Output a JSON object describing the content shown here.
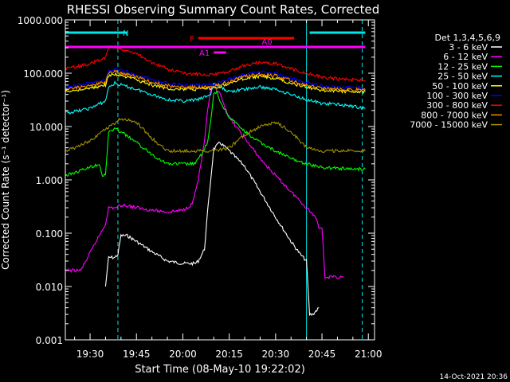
{
  "chart_data": {
    "type": "line",
    "title": "RHESSI Observing Summary Count Rates, Corrected",
    "xlabel": "Start Time (08-May-10 19:22:02)",
    "ylabel": "Corrected Count Rate (s⁻¹ detector⁻¹)",
    "yscale": "log",
    "ylim": [
      0.001,
      1000
    ],
    "xlim": [
      "19:22",
      "21:02"
    ],
    "x_ticks": [
      "19:30",
      "19:45",
      "20:00",
      "20:15",
      "20:30",
      "20:45",
      "21:00"
    ],
    "y_ticks": [
      "0.001",
      "0.010",
      "0.100",
      "1.000",
      "10.000",
      "100.000",
      "1000.000"
    ],
    "grid": false,
    "legend_position": "right",
    "legend_title": "Det 1,3,4,5,6,9",
    "timestamp": "14-Oct-2021 20:36",
    "flags": [
      {
        "label": "N",
        "color": "#00e5e5",
        "segments": [
          [
            "19:22",
            "19:42"
          ],
          [
            "20:41",
            "20:59"
          ]
        ]
      },
      {
        "label": "F",
        "color": "#ff0000",
        "segments": [
          [
            "20:05",
            "20:36"
          ]
        ]
      },
      {
        "label": "A0",
        "color": "#ff00ff",
        "segments": [
          [
            "19:22",
            "20:59"
          ]
        ]
      },
      {
        "label": "A1",
        "color": "#ff00ff",
        "segments": [
          [
            "20:10",
            "20:14"
          ]
        ]
      }
    ],
    "vertical_markers": [
      {
        "time": "19:22",
        "style": "dashed",
        "color": "#00e5e5"
      },
      {
        "time": "19:39",
        "style": "dashed",
        "color": "#00e5e5"
      },
      {
        "time": "20:40",
        "style": "solid",
        "color": "#00e5e5"
      },
      {
        "time": "20:58",
        "style": "dashed",
        "color": "#00e5e5"
      }
    ],
    "series": [
      {
        "name": "3 - 6 keV",
        "color": "#ffffff",
        "x": [
          "19:35",
          "19:36",
          "19:38",
          "19:39",
          "19:40",
          "19:42",
          "19:45",
          "19:50",
          "19:55",
          "20:00",
          "20:04",
          "20:05",
          "20:07",
          "20:08",
          "20:09",
          "20:10",
          "20:12",
          "20:15",
          "20:20",
          "20:25",
          "20:30",
          "20:35",
          "20:38",
          "20:40",
          "20:41",
          "20:42",
          "20:44"
        ],
        "y": [
          0.01,
          0.035,
          0.035,
          0.04,
          0.09,
          0.09,
          0.07,
          0.045,
          0.03,
          0.027,
          0.027,
          0.03,
          0.05,
          0.25,
          1.0,
          3.8,
          5.0,
          3.5,
          1.8,
          0.6,
          0.2,
          0.07,
          0.04,
          0.03,
          0.003,
          0.003,
          0.004
        ]
      },
      {
        "name": "6 - 12 keV",
        "color": "#ff00ff",
        "x": [
          "19:22",
          "19:27",
          "19:35",
          "19:36",
          "19:38",
          "19:40",
          "19:42",
          "19:45",
          "19:50",
          "19:55",
          "20:00",
          "20:03",
          "20:05",
          "20:07",
          "20:08",
          "20:09",
          "20:10",
          "20:12",
          "20:15",
          "20:20",
          "20:25",
          "20:30",
          "20:35",
          "20:40",
          "20:43",
          "20:44",
          "20:45",
          "20:46",
          "20:52"
        ],
        "y": [
          0.02,
          0.02,
          0.15,
          0.3,
          0.3,
          0.33,
          0.33,
          0.3,
          0.27,
          0.25,
          0.27,
          0.35,
          1.0,
          5.0,
          20,
          50,
          55,
          40,
          15,
          6,
          2.5,
          1.2,
          0.6,
          0.3,
          0.2,
          0.13,
          0.13,
          0.015,
          0.015
        ]
      },
      {
        "name": "12 - 25 keV",
        "color": "#00ff00",
        "x": [
          "19:22",
          "19:27",
          "19:33",
          "19:34",
          "19:35",
          "19:36",
          "19:38",
          "19:40",
          "19:45",
          "19:50",
          "19:55",
          "20:00",
          "20:04",
          "20:06",
          "20:08",
          "20:09",
          "20:10",
          "20:11",
          "20:12",
          "20:15",
          "20:20",
          "20:25",
          "20:30",
          "20:35",
          "20:40",
          "20:45",
          "20:55",
          "20:59"
        ],
        "y": [
          1.2,
          1.5,
          2.0,
          1.2,
          1.2,
          8,
          9,
          8,
          5,
          3,
          2.0,
          2.0,
          2.0,
          3,
          5,
          12,
          40,
          45,
          30,
          15,
          8,
          5,
          3.5,
          2.5,
          2.0,
          1.7,
          1.6,
          1.6
        ]
      },
      {
        "name": "25 - 50 keV",
        "color": "#00ffff",
        "x": [
          "19:22",
          "19:25",
          "19:30",
          "19:35",
          "19:36",
          "19:38",
          "19:40",
          "19:45",
          "19:50",
          "19:55",
          "20:00",
          "20:05",
          "20:09",
          "20:10",
          "20:12",
          "20:15",
          "20:20",
          "20:25",
          "20:30",
          "20:35",
          "20:40",
          "20:45",
          "20:50",
          "20:55",
          "20:59"
        ],
        "y": [
          18,
          19,
          22,
          30,
          55,
          65,
          60,
          50,
          40,
          32,
          30,
          32,
          40,
          65,
          55,
          45,
          50,
          55,
          50,
          40,
          32,
          27,
          26,
          24,
          22
        ]
      },
      {
        "name": "50 - 100 keV",
        "color": "#ffff00",
        "x": [
          "19:22",
          "19:25",
          "19:30",
          "19:35",
          "19:36",
          "19:38",
          "19:40",
          "19:45",
          "19:50",
          "19:55",
          "20:00",
          "20:05",
          "20:10",
          "20:15",
          "20:20",
          "20:25",
          "20:30",
          "20:35",
          "20:40",
          "20:45",
          "20:50",
          "20:55",
          "20:59"
        ],
        "y": [
          45,
          48,
          52,
          60,
          90,
          95,
          90,
          75,
          60,
          52,
          50,
          50,
          52,
          65,
          80,
          88,
          80,
          65,
          55,
          48,
          46,
          46,
          45
        ]
      },
      {
        "name": "100 - 300 keV",
        "color": "#0000ff",
        "x": [
          "19:22",
          "19:25",
          "19:30",
          "19:35",
          "19:36",
          "19:38",
          "19:40",
          "19:45",
          "19:50",
          "19:55",
          "20:00",
          "20:05",
          "20:10",
          "20:15",
          "20:20",
          "20:25",
          "20:30",
          "20:35",
          "20:40",
          "20:45",
          "20:50",
          "20:55",
          "20:59"
        ],
        "y": [
          55,
          58,
          65,
          75,
          110,
          120,
          112,
          95,
          75,
          65,
          60,
          60,
          62,
          78,
          95,
          105,
          98,
          80,
          68,
          58,
          55,
          54,
          53
        ]
      },
      {
        "name": "300 - 800 keV",
        "color": "#ff0000",
        "x": [
          "19:22",
          "19:25",
          "19:30",
          "19:35",
          "19:36",
          "19:38",
          "19:40",
          "19:45",
          "19:50",
          "19:55",
          "20:00",
          "20:05",
          "20:10",
          "20:15",
          "20:20",
          "20:25",
          "20:30",
          "20:35",
          "20:40",
          "20:45",
          "20:50",
          "20:55",
          "20:59"
        ],
        "y": [
          120,
          130,
          150,
          200,
          300,
          320,
          290,
          230,
          160,
          120,
          100,
          95,
          95,
          110,
          140,
          160,
          150,
          120,
          100,
          85,
          78,
          75,
          72
        ]
      },
      {
        "name": "800 - 7000 keV",
        "color": "#ff8c00",
        "x": [
          "19:22",
          "19:25",
          "19:30",
          "19:35",
          "19:36",
          "19:38",
          "19:40",
          "19:45",
          "19:50",
          "19:55",
          "20:00",
          "20:05",
          "20:10",
          "20:15",
          "20:20",
          "20:25",
          "20:30",
          "20:35",
          "20:40",
          "20:45",
          "20:50",
          "20:55",
          "20:59"
        ],
        "y": [
          50,
          53,
          58,
          68,
          100,
          108,
          100,
          85,
          68,
          58,
          54,
          54,
          56,
          70,
          88,
          96,
          90,
          72,
          60,
          52,
          50,
          49,
          48
        ]
      },
      {
        "name": "7000 - 15000 keV",
        "color": "#a09000",
        "x": [
          "19:22",
          "19:25",
          "19:30",
          "19:35",
          "19:40",
          "19:45",
          "19:50",
          "19:55",
          "20:00",
          "20:05",
          "20:10",
          "20:15",
          "20:20",
          "20:25",
          "20:30",
          "20:35",
          "20:40",
          "20:45",
          "20:50",
          "20:55",
          "20:59"
        ],
        "y": [
          3.5,
          4,
          5.5,
          9,
          14,
          12,
          6,
          3.5,
          3.5,
          3.5,
          3.5,
          4,
          7,
          10,
          12,
          8,
          4,
          3.5,
          3.5,
          3.5,
          3.5
        ]
      }
    ]
  }
}
